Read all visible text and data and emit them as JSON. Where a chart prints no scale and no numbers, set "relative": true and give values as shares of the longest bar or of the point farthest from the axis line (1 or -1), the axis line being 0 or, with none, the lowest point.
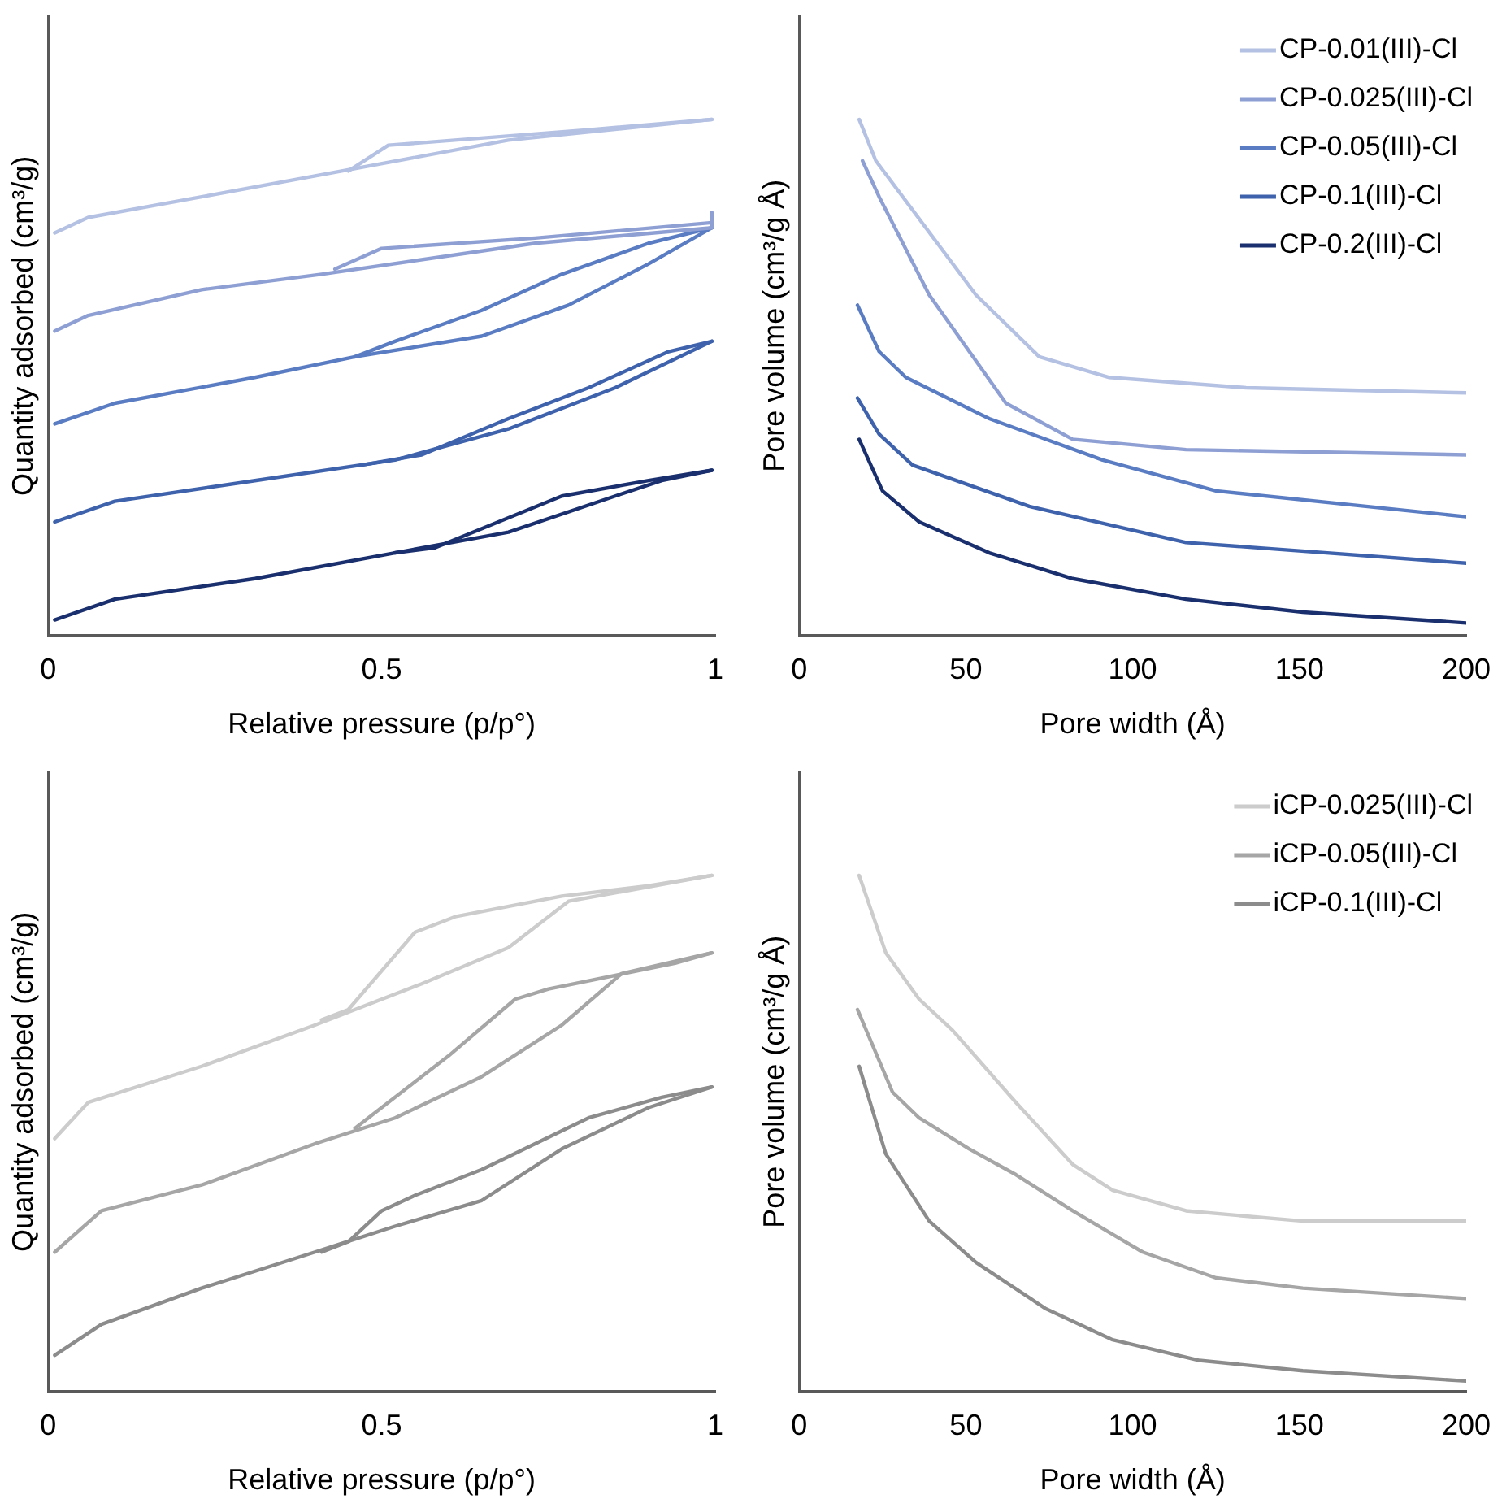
{
  "chart_data": [
    {
      "type": "line",
      "relative": true,
      "xlabel": "Relative pressure (p/p°)",
      "ylabel": "Quantity adsorbed (cm³/g)",
      "xlim": [
        0,
        1
      ],
      "xticks": [
        0,
        0.5,
        1
      ],
      "legend": false,
      "grid": false,
      "marker": "none",
      "line_style": "solid",
      "series": [
        {
          "color": "#b4c1e2",
          "x": [
            0.01,
            0.06,
            0.23,
            0.44,
            0.69,
            0.995
          ],
          "values": [
            0.78,
            0.81,
            0.85,
            0.9,
            0.96,
            1
          ]
        },
        {
          "color": "#b4c1e2",
          "x": [
            0.995,
            0.81,
            0.51,
            0.45
          ],
          "values": [
            1,
            0.98,
            0.95,
            0.9
          ]
        },
        {
          "color": "#8e9fd4",
          "x": [
            0.01,
            0.06,
            0.23,
            0.41,
            0.73,
            0.995,
            0.995
          ],
          "values": [
            0.59,
            0.62,
            0.67,
            0.7,
            0.76,
            0.79,
            0.82
          ]
        },
        {
          "color": "#8e9fd4",
          "x": [
            0.995,
            0.73,
            0.5,
            0.43
          ],
          "values": [
            0.8,
            0.77,
            0.75,
            0.71
          ]
        },
        {
          "color": "#5a7cc2",
          "x": [
            0.01,
            0.1,
            0.31,
            0.46,
            0.65,
            0.78,
            0.9,
            0.995
          ],
          "values": [
            0.41,
            0.45,
            0.5,
            0.54,
            0.58,
            0.64,
            0.72,
            0.79
          ]
        },
        {
          "color": "#5a7cc2",
          "x": [
            0.995,
            0.9,
            0.77,
            0.65,
            0.52,
            0.46
          ],
          "values": [
            0.79,
            0.76,
            0.7,
            0.63,
            0.57,
            0.54
          ]
        },
        {
          "color": "#3f62ad",
          "x": [
            0.01,
            0.1,
            0.31,
            0.52,
            0.69,
            0.85,
            0.995
          ],
          "values": [
            0.22,
            0.26,
            0.3,
            0.34,
            0.4,
            0.48,
            0.57
          ]
        },
        {
          "color": "#3f62ad",
          "x": [
            0.995,
            0.93,
            0.81,
            0.69,
            0.56,
            0.47
          ],
          "values": [
            0.57,
            0.55,
            0.48,
            0.42,
            0.35,
            0.33
          ]
        },
        {
          "color": "#1a2f6e",
          "x": [
            0.01,
            0.1,
            0.31,
            0.52,
            0.69,
            0.85,
            0.92,
            0.995
          ],
          "values": [
            0.03,
            0.07,
            0.11,
            0.16,
            0.2,
            0.27,
            0.3,
            0.32
          ]
        },
        {
          "color": "#1a2f6e",
          "x": [
            0.995,
            0.9,
            0.77,
            0.58,
            0.52
          ],
          "values": [
            0.32,
            0.3,
            0.27,
            0.17,
            0.16
          ]
        }
      ]
    },
    {
      "type": "line",
      "relative": true,
      "xlabel": "Pore width (Å)",
      "ylabel": "Pore volume (cm³/g Å)",
      "xlim": [
        0,
        200
      ],
      "xticks": [
        0,
        50,
        100,
        150,
        200
      ],
      "legend": "top right",
      "grid": false,
      "marker": "none",
      "line_style": "solid",
      "series": [
        {
          "name": "CP-0.01(III)-Cl",
          "color": "#b4c1e2",
          "x": [
            18,
            23,
            53,
            72,
            93,
            134,
            200
          ],
          "values": [
            1,
            0.92,
            0.66,
            0.54,
            0.5,
            0.48,
            0.47
          ]
        },
        {
          "name": "CP-0.025(III)-Cl",
          "color": "#8e9fd4",
          "x": [
            19,
            24,
            39,
            62,
            82,
            116,
            200
          ],
          "values": [
            0.92,
            0.85,
            0.66,
            0.45,
            0.38,
            0.36,
            0.35
          ]
        },
        {
          "name": "CP-0.05(III)-Cl",
          "color": "#5a7cc2",
          "x": [
            17.5,
            24,
            32,
            57,
            91,
            125,
            200
          ],
          "values": [
            0.64,
            0.55,
            0.5,
            0.42,
            0.34,
            0.28,
            0.23
          ]
        },
        {
          "name": "CP-0.1(III)-Cl",
          "color": "#3f62ad",
          "x": [
            17.5,
            24,
            34,
            69,
            116,
            200
          ],
          "values": [
            0.46,
            0.39,
            0.33,
            0.25,
            0.18,
            0.14
          ]
        },
        {
          "name": "CP-0.2(III)-Cl",
          "color": "#1a2f6e",
          "x": [
            18,
            25,
            36,
            57,
            82,
            116,
            151,
            200
          ],
          "values": [
            0.38,
            0.28,
            0.22,
            0.16,
            0.11,
            0.07,
            0.045,
            0.024
          ]
        }
      ]
    },
    {
      "type": "line",
      "relative": true,
      "xlabel": "Relative pressure (p/p°)",
      "ylabel": "Quantity adsorbed (cm³/g)",
      "xlim": [
        0,
        1
      ],
      "xticks": [
        0,
        0.5,
        1
      ],
      "legend": false,
      "grid": false,
      "marker": "none",
      "line_style": "solid",
      "series": [
        {
          "color": "#cccccc",
          "x": [
            0.01,
            0.06,
            0.23,
            0.4,
            0.56,
            0.69,
            0.78,
            0.995
          ],
          "values": [
            0.49,
            0.56,
            0.63,
            0.71,
            0.79,
            0.86,
            0.95,
            1
          ]
        },
        {
          "color": "#cccccc",
          "x": [
            0.995,
            0.9,
            0.77,
            0.61,
            0.55,
            0.45,
            0.41
          ],
          "values": [
            1,
            0.98,
            0.96,
            0.92,
            0.89,
            0.74,
            0.72
          ]
        },
        {
          "color": "#a6a6a6",
          "x": [
            0.01,
            0.08,
            0.23,
            0.4,
            0.52,
            0.65,
            0.77,
            0.86,
            0.995
          ],
          "values": [
            0.27,
            0.35,
            0.4,
            0.48,
            0.53,
            0.61,
            0.71,
            0.81,
            0.85
          ]
        },
        {
          "color": "#a6a6a6",
          "x": [
            0.995,
            0.94,
            0.75,
            0.7,
            0.6,
            0.5,
            0.46
          ],
          "values": [
            0.85,
            0.83,
            0.78,
            0.76,
            0.65,
            0.55,
            0.51
          ]
        },
        {
          "color": "#8c8c8c",
          "x": [
            0.01,
            0.08,
            0.23,
            0.4,
            0.52,
            0.65,
            0.77,
            0.9,
            0.995
          ],
          "values": [
            0.07,
            0.13,
            0.2,
            0.27,
            0.32,
            0.37,
            0.47,
            0.55,
            0.59
          ]
        },
        {
          "color": "#8c8c8c",
          "x": [
            0.995,
            0.92,
            0.81,
            0.65,
            0.55,
            0.5,
            0.45,
            0.41
          ],
          "values": [
            0.59,
            0.57,
            0.53,
            0.43,
            0.38,
            0.35,
            0.29,
            0.27
          ]
        }
      ]
    },
    {
      "type": "line",
      "relative": true,
      "xlabel": "Pore width (Å)",
      "ylabel": "Pore volume (cm³/g Å)",
      "xlim": [
        0,
        200
      ],
      "xticks": [
        0,
        50,
        100,
        150,
        200
      ],
      "legend": "top right",
      "grid": false,
      "marker": "none",
      "line_style": "solid",
      "series": [
        {
          "name": "iCP-0.025(III)-Cl",
          "color": "#cccccc",
          "x": [
            18,
            26,
            36,
            46,
            65,
            82,
            94,
            116,
            151,
            200
          ],
          "values": [
            1,
            0.85,
            0.76,
            0.7,
            0.56,
            0.44,
            0.39,
            0.35,
            0.33,
            0.33
          ]
        },
        {
          "name": "iCP-0.05(III)-Cl",
          "color": "#a6a6a6",
          "x": [
            17.5,
            28,
            36,
            51,
            65,
            82,
            103,
            125,
            151,
            200
          ],
          "values": [
            0.74,
            0.58,
            0.53,
            0.47,
            0.42,
            0.35,
            0.27,
            0.22,
            0.2,
            0.18
          ]
        },
        {
          "name": "iCP-0.1(III)-Cl",
          "color": "#8c8c8c",
          "x": [
            18,
            26,
            39,
            53,
            74,
            94,
            120,
            151,
            200
          ],
          "values": [
            0.63,
            0.46,
            0.33,
            0.25,
            0.16,
            0.1,
            0.06,
            0.04,
            0.02
          ]
        }
      ]
    }
  ]
}
